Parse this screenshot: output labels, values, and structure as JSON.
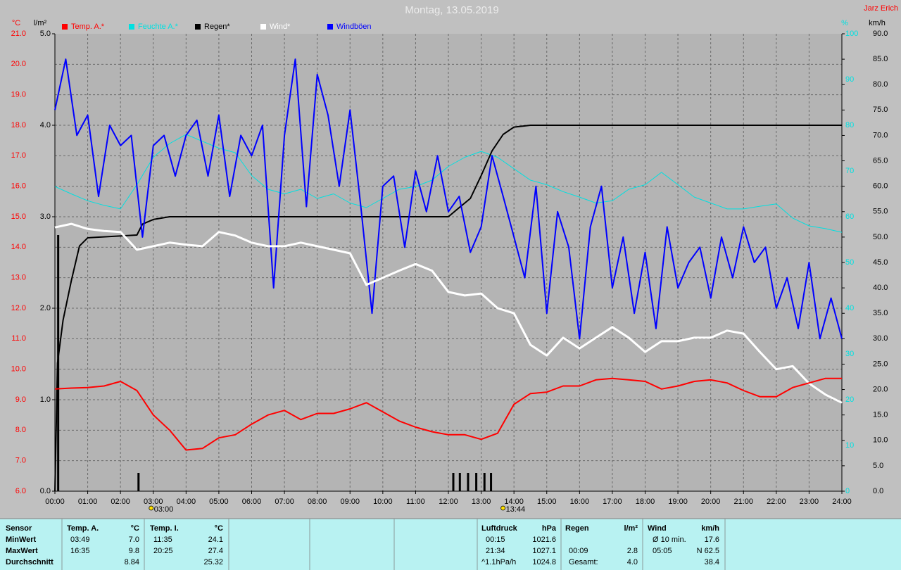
{
  "chart_data": {
    "type": "line",
    "title": "Montag, 13.05.2019",
    "author": "Jarz Erich",
    "x": [
      0,
      0.5,
      1,
      1.5,
      2,
      2.5,
      3,
      3.5,
      4,
      4.5,
      5,
      5.5,
      6,
      6.5,
      7,
      7.5,
      8,
      8.5,
      9,
      9.5,
      10,
      10.5,
      11,
      11.5,
      12,
      12.5,
      13,
      13.5,
      14,
      14.5,
      15,
      15.5,
      16,
      16.5,
      17,
      17.5,
      18,
      18.5,
      19,
      19.5,
      20,
      20.5,
      21,
      21.5,
      22,
      22.5,
      23,
      23.5,
      24
    ],
    "xlim": [
      0,
      24
    ],
    "xticks": [
      {
        "value": 0,
        "label": "00:00"
      },
      {
        "value": 1,
        "label": "01:00"
      },
      {
        "value": 2,
        "label": "02:00"
      },
      {
        "value": 3,
        "label": "03:00"
      },
      {
        "value": 4,
        "label": "04:00"
      },
      {
        "value": 5,
        "label": "05:00"
      },
      {
        "value": 6,
        "label": "06:00"
      },
      {
        "value": 7,
        "label": "07:00"
      },
      {
        "value": 8,
        "label": "08:00"
      },
      {
        "value": 9,
        "label": "09:00"
      },
      {
        "value": 10,
        "label": "10:00"
      },
      {
        "value": 11,
        "label": "11:00"
      },
      {
        "value": 12,
        "label": "12:00"
      },
      {
        "value": 13,
        "label": "13:00"
      },
      {
        "value": 14,
        "label": "14:00"
      },
      {
        "value": 15,
        "label": "15:00"
      },
      {
        "value": 16,
        "label": "16:00"
      },
      {
        "value": 17,
        "label": "17:00"
      },
      {
        "value": 18,
        "label": "18:00"
      },
      {
        "value": 19,
        "label": "19:00"
      },
      {
        "value": 20,
        "label": "20:00"
      },
      {
        "value": 21,
        "label": "21:00"
      },
      {
        "value": 22,
        "label": "22:00"
      },
      {
        "value": 23,
        "label": "23:00"
      },
      {
        "value": 24,
        "label": "24:00"
      }
    ],
    "grid": true,
    "axes": [
      {
        "title": "°C",
        "color": "#ff0000",
        "lim": [
          6,
          21
        ],
        "ticks": [
          {
            "value": 6,
            "label": "6.0"
          },
          {
            "value": 7,
            "label": "7.0"
          },
          {
            "value": 8,
            "label": "8.0"
          },
          {
            "value": 9,
            "label": "9.0"
          },
          {
            "value": 10,
            "label": "10.0"
          },
          {
            "value": 11,
            "label": "11.0"
          },
          {
            "value": 12,
            "label": "12.0"
          },
          {
            "value": 13,
            "label": "13.0"
          },
          {
            "value": 14,
            "label": "14.0"
          },
          {
            "value": 15,
            "label": "15.0"
          },
          {
            "value": 16,
            "label": "16.0"
          },
          {
            "value": 17,
            "label": "17.0"
          },
          {
            "value": 18,
            "label": "18.0"
          },
          {
            "value": 19,
            "label": "19.0"
          },
          {
            "value": 20,
            "label": "20.0"
          },
          {
            "value": 21,
            "label": "21.0"
          }
        ]
      },
      {
        "title": "l/m²",
        "color": "#000000",
        "lim": [
          0,
          5
        ],
        "ticks": [
          {
            "value": 0,
            "label": "0.0"
          },
          {
            "value": 1,
            "label": "1.0"
          },
          {
            "value": 2,
            "label": "2.0"
          },
          {
            "value": 3,
            "label": "3.0"
          },
          {
            "value": 4,
            "label": "4.0"
          },
          {
            "value": 5,
            "label": "5.0"
          }
        ]
      },
      {
        "title": "%",
        "color": "#00e0e0",
        "lim": [
          0,
          100
        ],
        "ticks": [
          0,
          10,
          20,
          30,
          40,
          50,
          60,
          70,
          80,
          90,
          100
        ]
      },
      {
        "title": "km/h",
        "color": "#000000",
        "lim": [
          0,
          90
        ],
        "ticks": [
          {
            "value": 0,
            "label": "0.0"
          },
          {
            "value": 5,
            "label": "5.0"
          },
          {
            "value": 10,
            "label": "10.0"
          },
          {
            "value": 15,
            "label": "15.0"
          },
          {
            "value": 20,
            "label": "20.0"
          },
          {
            "value": 25,
            "label": "25.0"
          },
          {
            "value": 30,
            "label": "30.0"
          },
          {
            "value": 35,
            "label": "35.0"
          },
          {
            "value": 40,
            "label": "40.0"
          },
          {
            "value": 45,
            "label": "45.0"
          },
          {
            "value": 50,
            "label": "50.0"
          },
          {
            "value": 55,
            "label": "55.0"
          },
          {
            "value": 60,
            "label": "60.0"
          },
          {
            "value": 65,
            "label": "65.0"
          },
          {
            "value": 70,
            "label": "70.0"
          },
          {
            "value": 75,
            "label": "75.0"
          },
          {
            "value": 80,
            "label": "80.0"
          },
          {
            "value": 85,
            "label": "85.0"
          },
          {
            "value": 90,
            "label": "90.0"
          }
        ]
      }
    ],
    "series": [
      {
        "name": "Temp. A.*",
        "color": "#ff0000",
        "axis": 0,
        "width": 2,
        "values": [
          9.35,
          9.38,
          9.4,
          9.45,
          9.6,
          9.3,
          8.5,
          8.0,
          7.35,
          7.4,
          7.75,
          7.85,
          8.2,
          8.5,
          8.65,
          8.35,
          8.55,
          8.55,
          8.7,
          8.9,
          8.6,
          8.3,
          8.1,
          7.95,
          7.85,
          7.85,
          7.7,
          7.9,
          8.85,
          9.2,
          9.25,
          9.45,
          9.45,
          9.65,
          9.7,
          9.65,
          9.6,
          9.35,
          9.45,
          9.6,
          9.65,
          9.55,
          9.3,
          9.1,
          9.1,
          9.4,
          9.55,
          9.7,
          9.7
        ]
      },
      {
        "name": "Feuchte A.*",
        "color": "#00e0e0",
        "axis": 2,
        "width": 1,
        "values": [
          66.6,
          65,
          63.5,
          62.5,
          61.7,
          67,
          73,
          76,
          78,
          76.5,
          75,
          74,
          69,
          66,
          65,
          66,
          64,
          65,
          63,
          62,
          64,
          66,
          66.6,
          68,
          71,
          73,
          74.3,
          73,
          70.5,
          68,
          67,
          65.5,
          64.3,
          63,
          63.5,
          66,
          67,
          69.7,
          67,
          64.3,
          63,
          61.7,
          61.7,
          62.3,
          62.8,
          59.7,
          58,
          57.4,
          56.6
        ]
      },
      {
        "name": "Regen*",
        "color": "#000000",
        "axis": 1,
        "width": 2,
        "x": [
          0,
          0.08,
          0.25,
          0.5,
          0.75,
          1,
          2.5,
          2.67,
          3,
          3.5,
          12,
          12.33,
          12.67,
          13,
          13.33,
          13.67,
          14,
          14.5,
          24
        ],
        "values": [
          0,
          1.4,
          1.87,
          2.3,
          2.68,
          2.77,
          2.8,
          2.92,
          2.97,
          3.0,
          3.0,
          3.1,
          3.2,
          3.45,
          3.72,
          3.9,
          3.98,
          4.0,
          4.0
        ],
        "bars_x": [
          0.1,
          2.55,
          12.15,
          12.35,
          12.6,
          12.85,
          13.1,
          13.3
        ],
        "bars": [
          2.8,
          0.2,
          0.2,
          0.2,
          0.2,
          0.2,
          0.2,
          0.2
        ]
      },
      {
        "name": "Wind*",
        "color": "#ffffff",
        "axis": 3,
        "width": 3,
        "values": [
          51.9,
          52.6,
          51.6,
          51.2,
          51,
          47.5,
          48.2,
          48.9,
          48.5,
          48.2,
          51,
          50.3,
          48.9,
          48.2,
          48.2,
          48.9,
          48.2,
          47.5,
          46.8,
          40.6,
          42,
          43.4,
          44.7,
          43.4,
          39.2,
          38.5,
          38.9,
          36,
          35,
          28.8,
          26.7,
          30.2,
          28.1,
          30.2,
          32.3,
          30.2,
          27.4,
          29.5,
          29.5,
          30.2,
          30.2,
          31.6,
          31,
          27.4,
          24,
          24.6,
          21.2,
          19,
          17.4
        ]
      },
      {
        "name": "Windböen",
        "color": "#0000ff",
        "axis": 3,
        "width": 2,
        "x": [
          0,
          0.33,
          0.67,
          1,
          1.33,
          1.67,
          2,
          2.33,
          2.67,
          3,
          3.33,
          3.67,
          4,
          4.33,
          4.67,
          5,
          5.33,
          5.67,
          6,
          6.33,
          6.67,
          7,
          7.33,
          7.67,
          8,
          8.33,
          8.67,
          9,
          9.33,
          9.67,
          10,
          10.33,
          10.67,
          11,
          11.33,
          11.67,
          12,
          12.33,
          12.67,
          13,
          13.33,
          13.67,
          14,
          14.33,
          14.67,
          15,
          15.33,
          15.67,
          16,
          16.33,
          16.67,
          17,
          17.33,
          17.67,
          18,
          18.33,
          18.67,
          19,
          19.33,
          19.67,
          20,
          20.33,
          20.67,
          21,
          21.33,
          21.67,
          22,
          22.33,
          22.67,
          23,
          23.33,
          23.67,
          24
        ],
        "values": [
          75,
          85,
          70,
          74,
          58,
          72,
          68,
          70,
          50,
          68,
          70,
          62,
          70,
          73,
          62,
          74,
          58,
          70,
          66,
          72,
          40,
          70,
          85,
          56,
          82,
          74,
          60,
          75,
          56,
          35,
          60,
          62,
          48,
          63,
          55,
          66,
          55,
          58,
          47,
          52,
          66,
          58,
          50,
          42,
          60,
          35,
          55,
          48,
          30,
          52,
          60,
          40,
          50,
          35,
          47,
          32,
          52,
          40,
          45,
          48,
          38,
          50,
          42,
          52,
          45,
          48,
          36,
          42,
          32,
          45,
          30,
          38,
          30
        ]
      }
    ],
    "annotations": [
      {
        "x": 3.0,
        "text": "03:00"
      },
      {
        "x": 13.73,
        "text": "13:44"
      }
    ],
    "table": {
      "sensor": {
        "header": "Sensor",
        "rows": [
          "MinWert",
          "MaxWert",
          "Durchschnitt"
        ]
      },
      "columns": [
        {
          "name": "Temp. A.",
          "unit": "°C",
          "rows": [
            {
              "time": "03:49",
              "value": "7.0"
            },
            {
              "time": "16:35",
              "value": "9.8"
            },
            {
              "value": "8.84"
            }
          ]
        },
        {
          "name": "Temp. I.",
          "unit": "°C",
          "rows": [
            {
              "time": "11:35",
              "value": "24.1"
            },
            {
              "time": "20:25",
              "value": "27.4"
            },
            {
              "value": "25.32"
            }
          ]
        },
        {
          "name": "Luftdruck",
          "unit": "hPa",
          "rows": [
            {
              "time": "00:15",
              "value": "1021.6"
            },
            {
              "time": "21:34",
              "value": "1027.1"
            },
            {
              "time": "^1.1hPa/h",
              "value": "1024.8"
            }
          ]
        },
        {
          "name": "Regen",
          "unit": "l/m²",
          "rows": [
            {},
            {
              "time": "00:09",
              "value": "2.8"
            },
            {
              "time": "Gesamt:",
              "value": "4.0"
            }
          ]
        },
        {
          "name": "Wind",
          "unit": "km/h",
          "rows": [
            {
              "time": "Ø 10 min.",
              "value": "17.6"
            },
            {
              "time": "05:05",
              "value": "N 62.5"
            },
            {
              "value": "38.4"
            }
          ]
        }
      ]
    }
  }
}
